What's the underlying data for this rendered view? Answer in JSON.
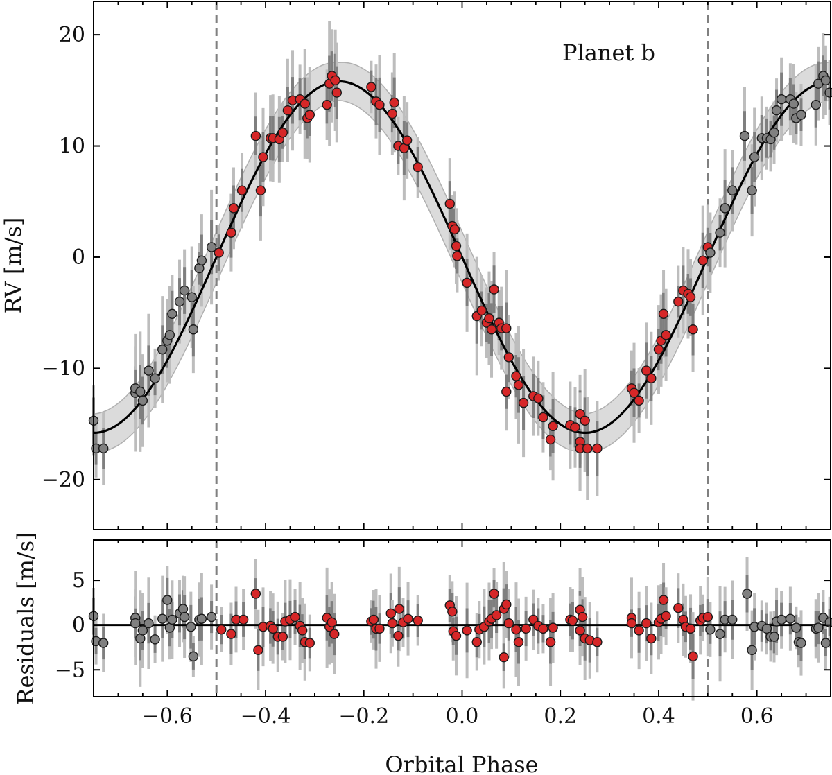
{
  "chart_data": [
    {
      "panel": "top",
      "type": "scatter",
      "title": "",
      "annotation": "Planet b",
      "xlabel": "",
      "ylabel": "RV [m/s]",
      "xlim": [
        -0.75,
        0.75
      ],
      "ylim": [
        -24.5,
        23
      ],
      "x_ticks": [
        -0.6,
        -0.4,
        -0.2,
        0.0,
        0.2,
        0.4,
        0.6
      ],
      "y_ticks": [
        -20,
        -10,
        0,
        10,
        20
      ],
      "y_tick_labels": [
        "−20",
        "−10",
        "0",
        "10",
        "20"
      ],
      "vertical_lines": [
        -0.5,
        0.5
      ],
      "model": {
        "type": "sinusoid",
        "amplitude": 15.8,
        "phase_of_max": -0.25,
        "band_halfwidth": 2.0
      },
      "colors": {
        "primary": "#d62728",
        "replica": "#808080",
        "model": "#000000",
        "band": "#c8c8c8",
        "vline": "#808080"
      },
      "series": [
        {
          "name": "primary",
          "points": [
            [
              -0.495,
              0.4
            ],
            [
              -0.47,
              2.2
            ],
            [
              -0.465,
              4.4
            ],
            [
              -0.448,
              6.0
            ],
            [
              -0.42,
              10.9
            ],
            [
              -0.41,
              6.0
            ],
            [
              -0.405,
              9.0
            ],
            [
              -0.39,
              10.7
            ],
            [
              -0.385,
              10.7
            ],
            [
              -0.372,
              10.6
            ],
            [
              -0.365,
              11.2
            ],
            [
              -0.355,
              13.2
            ],
            [
              -0.345,
              14.1
            ],
            [
              -0.33,
              14.2
            ],
            [
              -0.32,
              13.8
            ],
            [
              -0.315,
              12.5
            ],
            [
              -0.31,
              12.8
            ],
            [
              -0.275,
              13.7
            ],
            [
              -0.27,
              15.6
            ],
            [
              -0.265,
              16.3
            ],
            [
              -0.258,
              15.9
            ],
            [
              -0.255,
              14.8
            ],
            [
              -0.185,
              15.3
            ],
            [
              -0.175,
              14.0
            ],
            [
              -0.168,
              13.7
            ],
            [
              -0.142,
              12.9
            ],
            [
              -0.138,
              13.9
            ],
            [
              -0.13,
              10.0
            ],
            [
              -0.118,
              9.8
            ],
            [
              -0.112,
              10.5
            ],
            [
              -0.09,
              8.1
            ],
            [
              -0.025,
              4.8
            ],
            [
              -0.02,
              2.8
            ],
            [
              -0.015,
              2.5
            ],
            [
              -0.012,
              1.0
            ],
            [
              -0.01,
              0.1
            ],
            [
              0.01,
              -2.3
            ],
            [
              0.03,
              -5.3
            ],
            [
              0.04,
              -4.8
            ],
            [
              0.05,
              -5.9
            ],
            [
              0.055,
              -5.5
            ],
            [
              0.06,
              -6.5
            ],
            [
              0.065,
              -2.9
            ],
            [
              0.075,
              -5.9
            ],
            [
              0.08,
              -6.4
            ],
            [
              0.09,
              -6.4
            ],
            [
              0.095,
              -9.0
            ],
            [
              0.09,
              -12.1
            ],
            [
              0.11,
              -10.7
            ],
            [
              0.115,
              -11.5
            ],
            [
              0.125,
              -13.1
            ],
            [
              0.145,
              -12.5
            ],
            [
              0.155,
              -12.7
            ],
            [
              0.165,
              -14.4
            ],
            [
              0.18,
              -16.4
            ],
            [
              0.185,
              -15.2
            ],
            [
              0.22,
              -15.1
            ],
            [
              0.23,
              -15.3
            ],
            [
              0.24,
              -14.1
            ],
            [
              0.25,
              -14.7
            ],
            [
              0.24,
              -16.6
            ],
            [
              0.24,
              -17.2
            ],
            [
              0.255,
              -17.2
            ],
            [
              0.275,
              -17.2
            ],
            [
              0.345,
              -11.8
            ],
            [
              0.35,
              -12.2
            ],
            [
              0.36,
              -12.9
            ],
            [
              0.375,
              -10.2
            ],
            [
              0.385,
              -10.9
            ],
            [
              0.4,
              -8.3
            ],
            [
              0.405,
              -7.5
            ],
            [
              0.41,
              -5.1
            ],
            [
              0.415,
              -7.0
            ],
            [
              0.44,
              -4.0
            ],
            [
              0.45,
              -3.0
            ],
            [
              0.46,
              -3.3
            ],
            [
              0.465,
              -3.6
            ],
            [
              0.47,
              -6.5
            ],
            [
              0.49,
              -0.3
            ],
            [
              0.5,
              0.9
            ]
          ]
        },
        {
          "name": "replica",
          "points": [
            [
              -0.75,
              -14.7
            ],
            [
              -0.745,
              -17.2
            ],
            [
              -0.73,
              -17.2
            ],
            [
              -0.665,
              -12.2
            ],
            [
              -0.665,
              -11.8
            ],
            [
              -0.655,
              -12.1
            ],
            [
              -0.65,
              -12.9
            ],
            [
              -0.638,
              -10.2
            ],
            [
              -0.625,
              -10.9
            ],
            [
              -0.61,
              -8.3
            ],
            [
              -0.6,
              -7.5
            ],
            [
              -0.59,
              -5.1
            ],
            [
              -0.595,
              -7.0
            ],
            [
              -0.575,
              -4.0
            ],
            [
              -0.565,
              -3.0
            ],
            [
              -0.55,
              -3.6
            ],
            [
              -0.547,
              -6.5
            ],
            [
              -0.535,
              -1.0
            ],
            [
              -0.53,
              -0.3
            ],
            [
              -0.51,
              0.9
            ],
            [
              0.505,
              0.4
            ],
            [
              0.525,
              2.2
            ],
            [
              0.535,
              4.4
            ],
            [
              0.55,
              6.0
            ],
            [
              0.575,
              10.9
            ],
            [
              0.59,
              6.0
            ],
            [
              0.595,
              9.0
            ],
            [
              0.61,
              10.7
            ],
            [
              0.62,
              10.7
            ],
            [
              0.628,
              10.6
            ],
            [
              0.635,
              11.2
            ],
            [
              0.64,
              13.2
            ],
            [
              0.65,
              14.2
            ],
            [
              0.668,
              14.2
            ],
            [
              0.675,
              13.8
            ],
            [
              0.68,
              12.5
            ],
            [
              0.69,
              12.8
            ],
            [
              0.72,
              13.7
            ],
            [
              0.725,
              15.6
            ],
            [
              0.735,
              16.3
            ],
            [
              0.74,
              15.9
            ],
            [
              0.748,
              14.8
            ]
          ]
        }
      ]
    },
    {
      "panel": "bottom",
      "type": "scatter",
      "title": "",
      "xlabel": "Orbital Phase",
      "ylabel": "Residuals [m/s]",
      "xlim": [
        -0.75,
        0.75
      ],
      "ylim": [
        -8,
        9.5
      ],
      "x_ticks": [
        -0.6,
        -0.4,
        -0.2,
        0.0,
        0.2,
        0.4,
        0.6
      ],
      "x_tick_labels": [
        "−0.6",
        "−0.4",
        "−0.2",
        "0.0",
        "0.2",
        "0.4",
        "0.6"
      ],
      "y_ticks": [
        -5,
        0,
        5
      ],
      "y_tick_labels": [
        "−5",
        "0",
        "5"
      ],
      "vertical_lines": [
        -0.5,
        0.5
      ],
      "zero_line": 0,
      "series": [
        {
          "name": "primary",
          "points": [
            [
              -0.49,
              -0.5
            ],
            [
              -0.47,
              -1.0
            ],
            [
              -0.46,
              0.6
            ],
            [
              -0.445,
              0.6
            ],
            [
              -0.42,
              3.5
            ],
            [
              -0.415,
              -2.8
            ],
            [
              -0.405,
              -0.2
            ],
            [
              -0.39,
              -0.1
            ],
            [
              -0.385,
              -0.4
            ],
            [
              -0.375,
              -1.3
            ],
            [
              -0.365,
              -1.3
            ],
            [
              -0.36,
              0.4
            ],
            [
              -0.35,
              0.6
            ],
            [
              -0.34,
              0.9
            ],
            [
              -0.33,
              -0.1
            ],
            [
              -0.325,
              -0.6
            ],
            [
              -0.32,
              -1.9
            ],
            [
              -0.31,
              -2.0
            ],
            [
              -0.275,
              0.8
            ],
            [
              -0.27,
              -0.2
            ],
            [
              -0.265,
              0.3
            ],
            [
              -0.26,
              -1.0
            ],
            [
              -0.185,
              0.4
            ],
            [
              -0.18,
              0.6
            ],
            [
              -0.175,
              -0.4
            ],
            [
              -0.168,
              -0.4
            ],
            [
              -0.145,
              1.3
            ],
            [
              -0.142,
              0.2
            ],
            [
              -0.128,
              1.8
            ],
            [
              -0.13,
              -1.2
            ],
            [
              -0.12,
              0.3
            ],
            [
              -0.11,
              0.7
            ],
            [
              -0.09,
              0.5
            ],
            [
              -0.025,
              2.2
            ],
            [
              -0.02,
              1.5
            ],
            [
              -0.018,
              -0.7
            ],
            [
              -0.012,
              -1.2
            ],
            [
              0.01,
              -0.6
            ],
            [
              0.03,
              -1.9
            ],
            [
              0.035,
              -0.5
            ],
            [
              0.045,
              -0.2
            ],
            [
              0.055,
              0.4
            ],
            [
              0.06,
              0.7
            ],
            [
              0.065,
              3.5
            ],
            [
              0.07,
              1.1
            ],
            [
              0.085,
              1.8
            ],
            [
              0.09,
              2.3
            ],
            [
              0.085,
              -3.6
            ],
            [
              0.095,
              0.2
            ],
            [
              0.11,
              -0.5
            ],
            [
              0.115,
              -1.9
            ],
            [
              0.13,
              -0.4
            ],
            [
              0.145,
              0.6
            ],
            [
              0.155,
              -0.1
            ],
            [
              0.165,
              -0.4
            ],
            [
              0.18,
              -1.9
            ],
            [
              0.185,
              -0.3
            ],
            [
              0.22,
              0.6
            ],
            [
              0.225,
              0.5
            ],
            [
              0.24,
              1.7
            ],
            [
              0.245,
              0.9
            ],
            [
              0.24,
              -0.6
            ],
            [
              0.25,
              -1.5
            ],
            [
              0.26,
              -1.7
            ],
            [
              0.275,
              -1.9
            ],
            [
              0.345,
              0.8
            ],
            [
              0.345,
              0.2
            ],
            [
              0.36,
              -0.6
            ],
            [
              0.375,
              0.2
            ],
            [
              0.385,
              -1.5
            ],
            [
              0.4,
              0.3
            ],
            [
              0.405,
              0.7
            ],
            [
              0.41,
              2.8
            ],
            [
              0.415,
              1.0
            ],
            [
              0.44,
              1.9
            ],
            [
              0.45,
              0.6
            ],
            [
              0.455,
              -0.2
            ],
            [
              0.465,
              -0.4
            ],
            [
              0.47,
              -3.5
            ],
            [
              0.485,
              0.5
            ],
            [
              0.49,
              0.8
            ],
            [
              0.5,
              0.9
            ]
          ]
        },
        {
          "name": "replica",
          "points": [
            [
              -0.75,
              1.0
            ],
            [
              -0.745,
              -1.8
            ],
            [
              -0.73,
              -2.0
            ],
            [
              -0.665,
              0.8
            ],
            [
              -0.665,
              0.2
            ],
            [
              -0.655,
              -1.5
            ],
            [
              -0.65,
              -0.6
            ],
            [
              -0.638,
              0.2
            ],
            [
              -0.625,
              -1.6
            ],
            [
              -0.61,
              0.7
            ],
            [
              -0.6,
              2.8
            ],
            [
              -0.595,
              -0.3
            ],
            [
              -0.59,
              0.6
            ],
            [
              -0.575,
              1.3
            ],
            [
              -0.568,
              1.8
            ],
            [
              -0.565,
              0.9
            ],
            [
              -0.552,
              -0.2
            ],
            [
              -0.547,
              -3.5
            ],
            [
              -0.535,
              0.6
            ],
            [
              -0.53,
              0.7
            ],
            [
              -0.51,
              0.9
            ],
            [
              0.505,
              -0.5
            ],
            [
              0.525,
              -1.0
            ],
            [
              0.535,
              0.6
            ],
            [
              0.55,
              0.6
            ],
            [
              0.58,
              3.5
            ],
            [
              0.59,
              -2.8
            ],
            [
              0.595,
              -0.2
            ],
            [
              0.61,
              -0.1
            ],
            [
              0.62,
              -0.4
            ],
            [
              0.628,
              -1.3
            ],
            [
              0.635,
              -1.3
            ],
            [
              0.64,
              0.4
            ],
            [
              0.65,
              0.6
            ],
            [
              0.668,
              0.7
            ],
            [
              0.68,
              -0.3
            ],
            [
              0.685,
              -1.9
            ],
            [
              0.69,
              -2.0
            ],
            [
              0.72,
              -0.4
            ],
            [
              0.725,
              -0.3
            ],
            [
              0.735,
              0.8
            ],
            [
              0.74,
              -2.0
            ],
            [
              0.748,
              0.3
            ]
          ]
        }
      ]
    }
  ]
}
